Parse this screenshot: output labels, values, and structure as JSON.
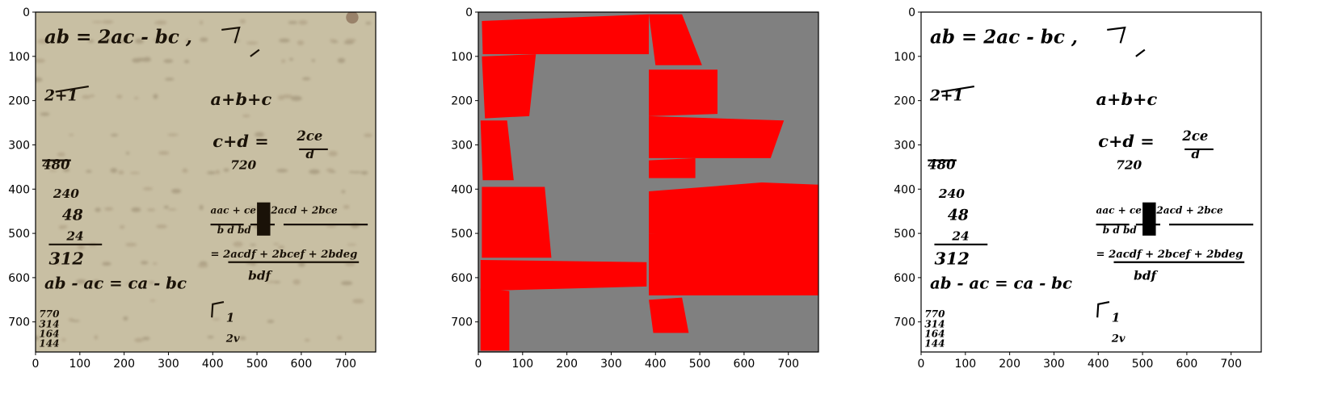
{
  "colors": {
    "parchment": "#c8bfa3",
    "ink": "#1a1208",
    "mask_background": "#808080",
    "mask_region": "#ff0000",
    "binarized_background": "#ffffff",
    "binarized_ink": "#000000"
  },
  "chart_data": [
    {
      "type": "image",
      "panel": "original-manuscript",
      "xlim": [
        0,
        768
      ],
      "ylim": [
        768,
        0
      ],
      "xticks": [
        0,
        100,
        200,
        300,
        400,
        500,
        600,
        700
      ],
      "yticks": [
        0,
        100,
        200,
        300,
        400,
        500,
        600,
        700
      ],
      "xtick_labels": [
        "0",
        "100",
        "200",
        "300",
        "400",
        "500",
        "600",
        "700"
      ],
      "ytick_labels": [
        "0",
        "100",
        "200",
        "300",
        "400",
        "500",
        "600",
        "700"
      ],
      "grid": false
    },
    {
      "type": "image",
      "panel": "region-mask",
      "xlim": [
        0,
        768
      ],
      "ylim": [
        768,
        0
      ],
      "xticks": [
        0,
        100,
        200,
        300,
        400,
        500,
        600,
        700
      ],
      "yticks": [
        0,
        100,
        200,
        300,
        400,
        500,
        600,
        700
      ],
      "xtick_labels": [
        "0",
        "100",
        "200",
        "300",
        "400",
        "500",
        "600",
        "700"
      ],
      "ytick_labels": [
        "0",
        "100",
        "200",
        "300",
        "400",
        "500",
        "600",
        "700"
      ],
      "grid": false,
      "regions": [
        [
          [
            8,
            20
          ],
          [
            385,
            5
          ],
          [
            385,
            95
          ],
          [
            10,
            95
          ]
        ],
        [
          [
            385,
            5
          ],
          [
            460,
            5
          ],
          [
            505,
            120
          ],
          [
            400,
            120
          ]
        ],
        [
          [
            8,
            100
          ],
          [
            130,
            95
          ],
          [
            115,
            235
          ],
          [
            15,
            240
          ]
        ],
        [
          [
            385,
            130
          ],
          [
            540,
            130
          ],
          [
            540,
            230
          ],
          [
            385,
            235
          ]
        ],
        [
          [
            5,
            245
          ],
          [
            65,
            245
          ],
          [
            80,
            380
          ],
          [
            10,
            380
          ]
        ],
        [
          [
            385,
            235
          ],
          [
            690,
            245
          ],
          [
            660,
            330
          ],
          [
            385,
            330
          ]
        ],
        [
          [
            385,
            335
          ],
          [
            490,
            330
          ],
          [
            490,
            375
          ],
          [
            385,
            375
          ]
        ],
        [
          [
            8,
            395
          ],
          [
            150,
            395
          ],
          [
            165,
            555
          ],
          [
            8,
            555
          ]
        ],
        [
          [
            385,
            405
          ],
          [
            640,
            385
          ],
          [
            768,
            390
          ],
          [
            768,
            500
          ],
          [
            385,
            500
          ]
        ],
        [
          [
            385,
            500
          ],
          [
            768,
            495
          ],
          [
            768,
            640
          ],
          [
            385,
            640
          ]
        ],
        [
          [
            5,
            560
          ],
          [
            380,
            565
          ],
          [
            380,
            620
          ],
          [
            5,
            630
          ]
        ],
        [
          [
            5,
            625
          ],
          [
            70,
            630
          ],
          [
            70,
            765
          ],
          [
            5,
            765
          ]
        ],
        [
          [
            385,
            650
          ],
          [
            460,
            645
          ],
          [
            475,
            725
          ],
          [
            395,
            725
          ]
        ]
      ]
    },
    {
      "type": "image",
      "panel": "binarized-manuscript",
      "xlim": [
        0,
        768
      ],
      "ylim": [
        768,
        0
      ],
      "xticks": [
        0,
        100,
        200,
        300,
        400,
        500,
        600,
        700
      ],
      "yticks": [
        0,
        100,
        200,
        300,
        400,
        500,
        600,
        700
      ],
      "xtick_labels": [
        "0",
        "100",
        "200",
        "300",
        "400",
        "500",
        "600",
        "700"
      ],
      "ytick_labels": [
        "0",
        "100",
        "200",
        "300",
        "400",
        "500",
        "600",
        "700"
      ],
      "grid": false
    }
  ],
  "handwriting": [
    {
      "text": "ab = 2ac - bc ,",
      "x": 20,
      "y": 70,
      "size": 42
    },
    {
      "text": "2+1",
      "x": 20,
      "y": 200,
      "size": 34
    },
    {
      "text": "a+b+c",
      "x": 395,
      "y": 210,
      "size": 38
    },
    {
      "text": "c+d =",
      "x": 400,
      "y": 305,
      "size": 38
    },
    {
      "text": "2ce",
      "x": 590,
      "y": 290,
      "size": 30
    },
    {
      "text": "d",
      "x": 610,
      "y": 330,
      "size": 28
    },
    {
      "text": "480",
      "x": 15,
      "y": 355,
      "size": 30
    },
    {
      "text": "720",
      "x": 440,
      "y": 355,
      "size": 28
    },
    {
      "text": "240",
      "x": 40,
      "y": 420,
      "size": 28
    },
    {
      "text": "48",
      "x": 60,
      "y": 470,
      "size": 34
    },
    {
      "text": "24",
      "x": 70,
      "y": 515,
      "size": 28
    },
    {
      "text": "312",
      "x": 30,
      "y": 570,
      "size": 38
    },
    {
      "text": "aac + ce = 2acd + 2bce",
      "x": 395,
      "y": 455,
      "size": 22
    },
    {
      "text": "b      d      bd",
      "x": 410,
      "y": 500,
      "size": 22
    },
    {
      "text": "= 2acdf + 2bcef + 2bdeg",
      "x": 395,
      "y": 555,
      "size": 24
    },
    {
      "text": "bdf",
      "x": 480,
      "y": 605,
      "size": 28
    },
    {
      "text": "ab - ac = ca - bc",
      "x": 20,
      "y": 625,
      "size": 36
    },
    {
      "text": "1",
      "x": 430,
      "y": 700,
      "size": 28
    },
    {
      "text": "2v",
      "x": 430,
      "y": 745,
      "size": 24
    }
  ]
}
